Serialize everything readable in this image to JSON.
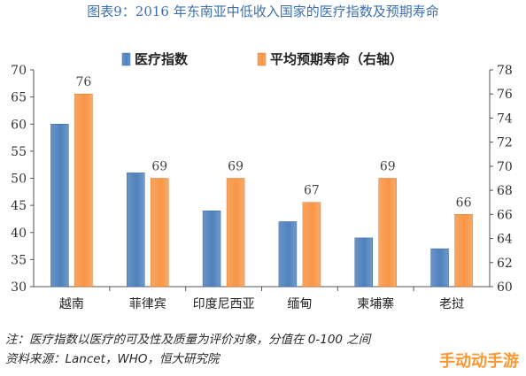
{
  "title": "图表9：2016 年东南亚中低收入国家的医疗指数及预期寿命",
  "note_line1": "注：医疗指数以医疗的可及性及质量为评价对象，分值在 0-100 之间",
  "note_line2": "资料来源：Lancet，WHO，恒大研究院",
  "watermark": "手动动手游",
  "colors": {
    "title": "#3a6fb0",
    "bar_blue": "#4f81bd",
    "bar_orange": "#f79646",
    "title_bg": "#ffffff"
  },
  "chart_data": {
    "type": "bar",
    "categories": [
      "越南",
      "菲律宾",
      "印度尼西亚",
      "缅甸",
      "柬埔寨",
      "老挝"
    ],
    "series": [
      {
        "name": "医疗指数",
        "axis": "left",
        "values": [
          60,
          51,
          44,
          42,
          39,
          37
        ]
      },
      {
        "name": "平均预期寿命（右轴）",
        "axis": "right",
        "values": [
          76,
          69,
          69,
          67,
          69,
          66
        ]
      }
    ],
    "data_labels": {
      "series": "平均预期寿命（右轴）",
      "values": [
        "76",
        "69",
        "69",
        "67",
        "69",
        "66"
      ]
    },
    "y_left": {
      "min": 30,
      "max": 70,
      "ticks": [
        "30",
        "35",
        "40",
        "45",
        "50",
        "55",
        "60",
        "65",
        "70"
      ]
    },
    "y_right": {
      "min": 60,
      "max": 78,
      "ticks": [
        "60",
        "62",
        "64",
        "66",
        "68",
        "70",
        "72",
        "74",
        "76",
        "78"
      ]
    },
    "legend": [
      "医疗指数",
      "平均预期寿命（右轴）"
    ],
    "legend_position": "top"
  }
}
